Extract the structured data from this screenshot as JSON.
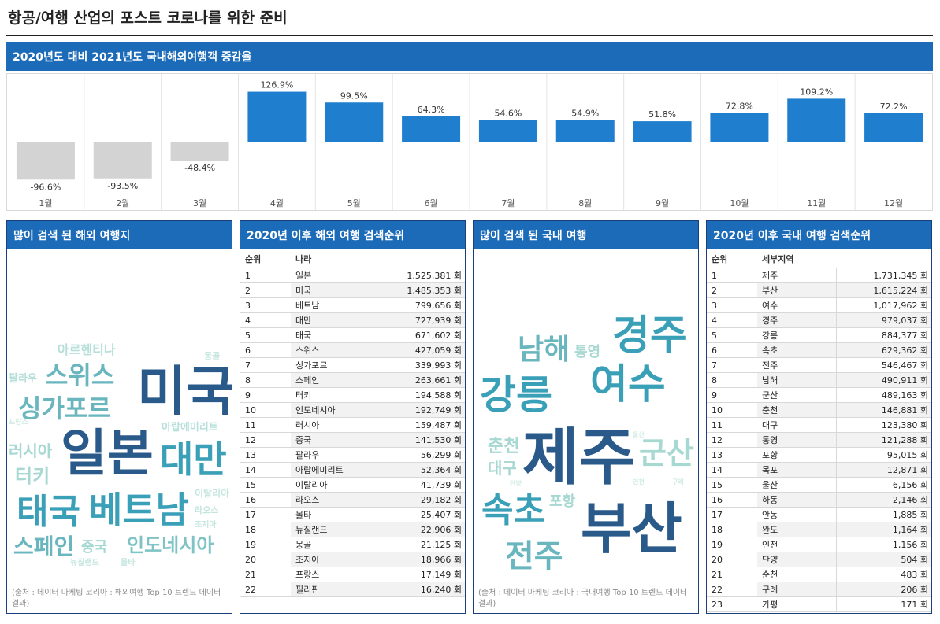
{
  "page_title": "항공/여행 산업의 포스트 코로나를 위한 준비",
  "chart_data": {
    "type": "bar",
    "title": "2020년도 대비 2021년도 국내해외여행객 증감율",
    "categories": [
      "1월",
      "2월",
      "3월",
      "4월",
      "5월",
      "6월",
      "7월",
      "8월",
      "9월",
      "10월",
      "11월",
      "12월"
    ],
    "values": [
      -96.6,
      -93.5,
      -48.4,
      126.9,
      99.5,
      64.3,
      54.6,
      54.9,
      51.8,
      72.8,
      109.2,
      72.2
    ],
    "value_labels": [
      "-96.6%",
      "-93.5%",
      "-48.4%",
      "126.9%",
      "99.5%",
      "64.3%",
      "54.6%",
      "54.9%",
      "51.8%",
      "72.8%",
      "109.2%",
      "72.2%"
    ],
    "positive_color": "#1f7fce",
    "negative_color": "#d3d3d3",
    "grid": "vertical separators"
  },
  "overseas_cloud": {
    "title": "많이 검색 된 해외 여행지",
    "source": "(출처 : 데이터 마케팅 코리아 : 해외여행 Top 10 트렌드 데이터 결과)",
    "words": [
      {
        "text": "미국",
        "color": "#2a5a8a"
      },
      {
        "text": "일본",
        "color": "#2a5a8a"
      },
      {
        "text": "대만",
        "color": "#3aa0b8"
      },
      {
        "text": "베트남",
        "color": "#3aa0b8"
      },
      {
        "text": "태국",
        "color": "#3aa0b8"
      },
      {
        "text": "싱가포르",
        "color": "#69b6bf"
      },
      {
        "text": "스위스",
        "color": "#69b6bf"
      },
      {
        "text": "스페인",
        "color": "#69b6bf"
      },
      {
        "text": "인도네시아",
        "color": "#7fc3c5"
      },
      {
        "text": "터키",
        "color": "#a7d8d2"
      },
      {
        "text": "러시아",
        "color": "#a7d8d2"
      },
      {
        "text": "중국",
        "color": "#a7d8d2"
      },
      {
        "text": "아르헨티나",
        "color": "#b5dfd8"
      },
      {
        "text": "아랍에미리트",
        "color": "#b5dfd8"
      },
      {
        "text": "팔라우",
        "color": "#b5dfd8"
      },
      {
        "text": "이탈리아",
        "color": "#c4e6df"
      },
      {
        "text": "라오스",
        "color": "#c4e6df"
      },
      {
        "text": "조지아",
        "color": "#c4e6df"
      },
      {
        "text": "뉴질랜드",
        "color": "#c4e6df"
      },
      {
        "text": "몰타",
        "color": "#c4e6df"
      },
      {
        "text": "몽골",
        "color": "#c4e6df"
      },
      {
        "text": "프랑스",
        "color": "#d0ebe5"
      }
    ]
  },
  "overseas_rank": {
    "title": "2020년 이후 해외 여행 검색순위",
    "col_rank": "순위",
    "col_name": "나라",
    "rows": [
      {
        "rank": "1",
        "name": "일본",
        "value": "1,525,381 회"
      },
      {
        "rank": "2",
        "name": "미국",
        "value": "1,485,353 회"
      },
      {
        "rank": "3",
        "name": "베트남",
        "value": "799,656 회"
      },
      {
        "rank": "4",
        "name": "대만",
        "value": "727,939 회"
      },
      {
        "rank": "5",
        "name": "태국",
        "value": "671,602 회"
      },
      {
        "rank": "6",
        "name": "스위스",
        "value": "427,059 회"
      },
      {
        "rank": "7",
        "name": "싱가포르",
        "value": "339,993 회"
      },
      {
        "rank": "8",
        "name": "스페인",
        "value": "263,661 회"
      },
      {
        "rank": "9",
        "name": "터키",
        "value": "194,588 회"
      },
      {
        "rank": "10",
        "name": "인도네시아",
        "value": "192,749 회"
      },
      {
        "rank": "11",
        "name": "러시아",
        "value": "159,487 회"
      },
      {
        "rank": "12",
        "name": "중국",
        "value": "141,530 회"
      },
      {
        "rank": "13",
        "name": "팔라우",
        "value": "56,299 회"
      },
      {
        "rank": "14",
        "name": "아랍에미리트",
        "value": "52,364 회"
      },
      {
        "rank": "15",
        "name": "이탈리아",
        "value": "41,739 회"
      },
      {
        "rank": "16",
        "name": "라오스",
        "value": "29,182 회"
      },
      {
        "rank": "17",
        "name": "몰타",
        "value": "25,407 회"
      },
      {
        "rank": "18",
        "name": "뉴질랜드",
        "value": "22,906 회"
      },
      {
        "rank": "19",
        "name": "몽골",
        "value": "21,125 회"
      },
      {
        "rank": "20",
        "name": "조지아",
        "value": "18,966 회"
      },
      {
        "rank": "21",
        "name": "프랑스",
        "value": "17,149 회"
      },
      {
        "rank": "22",
        "name": "필리핀",
        "value": "16,240 회"
      }
    ]
  },
  "domestic_cloud": {
    "title": "많이 검색 된 국내 여행",
    "source": "(출처 : 데이터 마케팅 코리아 : 국내여행 Top 10 트렌드 데이터 결과)",
    "words": [
      {
        "text": "제주",
        "color": "#2a5a8a"
      },
      {
        "text": "부산",
        "color": "#2a5a8a"
      },
      {
        "text": "여수",
        "color": "#3aa0b8"
      },
      {
        "text": "강릉",
        "color": "#3aa0b8"
      },
      {
        "text": "경주",
        "color": "#3aa0b8"
      },
      {
        "text": "속초",
        "color": "#3aa0b8"
      },
      {
        "text": "전주",
        "color": "#69b6bf"
      },
      {
        "text": "남해",
        "color": "#69b6bf"
      },
      {
        "text": "군산",
        "color": "#a7d8d2"
      },
      {
        "text": "춘천",
        "color": "#a7d8d2"
      },
      {
        "text": "대구",
        "color": "#a7d8d2"
      },
      {
        "text": "통영",
        "color": "#a7d8d2"
      },
      {
        "text": "포항",
        "color": "#a7d8d2"
      },
      {
        "text": "울산",
        "color": "#d0ebe5"
      },
      {
        "text": "구례",
        "color": "#d0ebe5"
      },
      {
        "text": "단양",
        "color": "#d0ebe5"
      },
      {
        "text": "인천",
        "color": "#d0ebe5"
      }
    ]
  },
  "domestic_rank": {
    "title": "2020년 이후 국내 여행 검색순위",
    "col_rank": "순위",
    "col_name": "세부지역",
    "rows": [
      {
        "rank": "1",
        "name": "제주",
        "value": "1,731,345 회"
      },
      {
        "rank": "2",
        "name": "부산",
        "value": "1,615,224 회"
      },
      {
        "rank": "3",
        "name": "여수",
        "value": "1,017,962 회"
      },
      {
        "rank": "4",
        "name": "경주",
        "value": "979,037 회"
      },
      {
        "rank": "5",
        "name": "강릉",
        "value": "884,377 회"
      },
      {
        "rank": "6",
        "name": "속초",
        "value": "629,362 회"
      },
      {
        "rank": "7",
        "name": "전주",
        "value": "546,467 회"
      },
      {
        "rank": "8",
        "name": "남해",
        "value": "490,911 회"
      },
      {
        "rank": "9",
        "name": "군산",
        "value": "489,163 회"
      },
      {
        "rank": "10",
        "name": "춘천",
        "value": "146,881 회"
      },
      {
        "rank": "11",
        "name": "대구",
        "value": "123,380 회"
      },
      {
        "rank": "12",
        "name": "통영",
        "value": "121,288 회"
      },
      {
        "rank": "13",
        "name": "포항",
        "value": "95,015 회"
      },
      {
        "rank": "14",
        "name": "목포",
        "value": "12,871 회"
      },
      {
        "rank": "15",
        "name": "울산",
        "value": "6,156 회"
      },
      {
        "rank": "16",
        "name": "하동",
        "value": "2,146 회"
      },
      {
        "rank": "17",
        "name": "안동",
        "value": "1,885 회"
      },
      {
        "rank": "18",
        "name": "완도",
        "value": "1,164 회"
      },
      {
        "rank": "19",
        "name": "인천",
        "value": "1,156 회"
      },
      {
        "rank": "20",
        "name": "단양",
        "value": "504 회"
      },
      {
        "rank": "21",
        "name": "순천",
        "value": "483 회"
      },
      {
        "rank": "22",
        "name": "구례",
        "value": "206 회"
      },
      {
        "rank": "23",
        "name": "가평",
        "value": "171 회"
      }
    ]
  }
}
